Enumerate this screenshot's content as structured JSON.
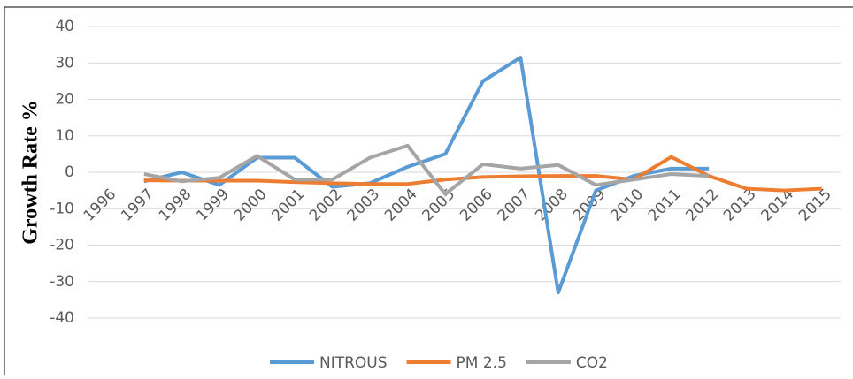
{
  "chart_data": {
    "type": "line",
    "y_label": "Growth Rate %",
    "categories": [
      "1996",
      "1997",
      "1998",
      "1999",
      "2000",
      "2001",
      "2002",
      "2003",
      "2004",
      "2005",
      "2006",
      "2007",
      "2008",
      "2009",
      "2010",
      "2011",
      "2012",
      "2013",
      "2014",
      "2015"
    ],
    "series": [
      {
        "name": "NITROUS",
        "color": "#5b9bd5",
        "values": [
          null,
          -2.5,
          0,
          -3.5,
          4,
          4,
          -4,
          -3,
          1.5,
          5,
          25,
          31.5,
          -33,
          -5,
          -1,
          1,
          1,
          null,
          null,
          null
        ]
      },
      {
        "name": "PM 2.5",
        "color": "#ed7d31",
        "values": [
          null,
          -2.2,
          -2.3,
          -2.3,
          -2.3,
          -2.7,
          -3,
          -3.2,
          -3.2,
          -2,
          -1.3,
          -1.1,
          -1,
          -1,
          -2,
          4.2,
          -1,
          -4.5,
          -5,
          -4.5
        ]
      },
      {
        "name": "CO2",
        "color": "#a5a5a5",
        "values": [
          null,
          -0.5,
          -2.5,
          -1.5,
          4.5,
          -2,
          -2,
          4,
          7.3,
          -6,
          2.2,
          1,
          2,
          -3.5,
          -2,
          -0.5,
          -1,
          null,
          null,
          null
        ]
      }
    ],
    "ylim": [
      -40,
      40
    ],
    "yticks": [
      -40,
      -30,
      -20,
      -10,
      0,
      10,
      20,
      30,
      40
    ],
    "grid": true,
    "legend": "bottom"
  }
}
